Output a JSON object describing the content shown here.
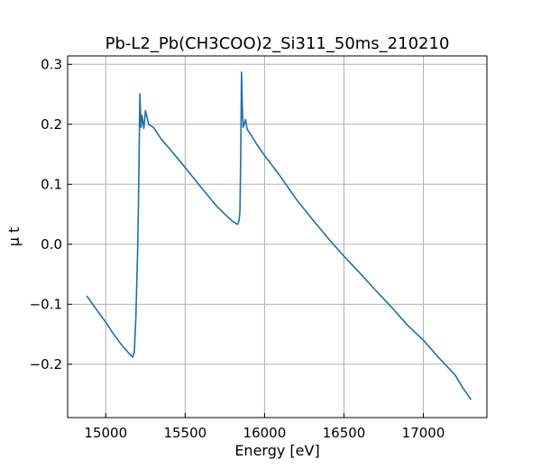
{
  "chart_data": {
    "type": "line",
    "title": "Pb-L2_Pb(CH3COO)2_Si311_50ms_210210",
    "xlabel": "Energy [eV]",
    "ylabel": "μ t",
    "xlim": [
      14760,
      17400
    ],
    "ylim": [
      -0.289,
      0.314
    ],
    "grid": true,
    "x_ticks": [
      15000,
      15500,
      16000,
      16500,
      17000
    ],
    "x_tick_labels": [
      "15000",
      "15500",
      "16000",
      "16500",
      "17000"
    ],
    "y_ticks": [
      -0.2,
      -0.1,
      0.0,
      0.1,
      0.2,
      0.3
    ],
    "y_tick_labels": [
      "−0.2",
      "−0.1",
      "0.0",
      "0.1",
      "0.2",
      "0.3"
    ],
    "series": [
      {
        "color": "#1f6fa8",
        "x": [
          14880,
          14950,
          15000,
          15050,
          15100,
          15150,
          15170,
          15180,
          15190,
          15200,
          15205,
          15210,
          15215,
          15222,
          15228,
          15240,
          15250,
          15270,
          15300,
          15350,
          15400,
          15500,
          15600,
          15700,
          15750,
          15800,
          15830,
          15840,
          15845,
          15850,
          15855,
          15860,
          15865,
          15872,
          15880,
          15890,
          15900,
          15920,
          15950,
          16000,
          16100,
          16200,
          16300,
          16400,
          16500,
          16600,
          16700,
          16800,
          16900,
          17000,
          17100,
          17200,
          17250,
          17300
        ],
        "y": [
          -0.086,
          -0.112,
          -0.13,
          -0.15,
          -0.168,
          -0.183,
          -0.188,
          -0.18,
          -0.12,
          -0.02,
          0.05,
          0.15,
          0.251,
          0.195,
          0.215,
          0.193,
          0.223,
          0.2,
          0.195,
          0.175,
          0.16,
          0.128,
          0.095,
          0.063,
          0.05,
          0.038,
          0.033,
          0.04,
          0.055,
          0.15,
          0.287,
          0.23,
          0.195,
          0.2,
          0.208,
          0.192,
          0.188,
          0.18,
          0.167,
          0.148,
          0.113,
          0.075,
          0.042,
          0.01,
          -0.02,
          -0.048,
          -0.077,
          -0.105,
          -0.135,
          -0.16,
          -0.19,
          -0.218,
          -0.24,
          -0.259
        ]
      }
    ]
  }
}
